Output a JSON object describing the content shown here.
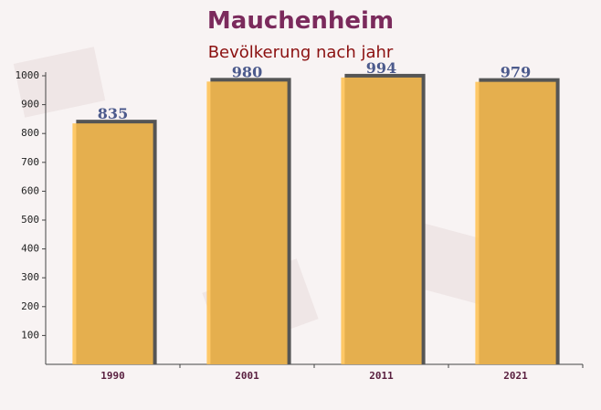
{
  "chart_data": {
    "type": "bar",
    "title": "Mauchenheim",
    "subtitle": "Bevölkerung nach jahr",
    "categories": [
      "1990",
      "2001",
      "2011",
      "2021"
    ],
    "values": [
      835,
      980,
      994,
      979
    ],
    "color": "#ffc04d",
    "ylim": [
      0,
      1000
    ],
    "yticks": [
      100,
      200,
      300,
      400,
      500,
      600,
      700,
      800,
      900,
      1000
    ]
  }
}
